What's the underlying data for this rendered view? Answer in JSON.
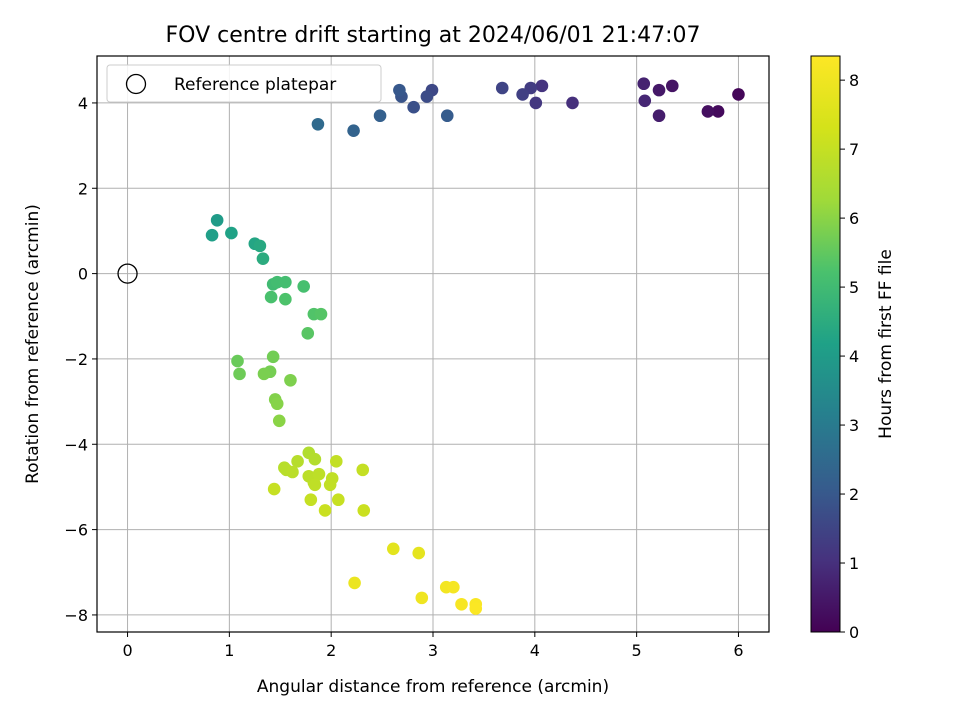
{
  "chart_data": {
    "type": "scatter",
    "title": "FOV centre drift starting at 2024/06/01 21:47:07",
    "xlabel": "Angular distance from reference (arcmin)",
    "ylabel": "Rotation from reference (arcmin)",
    "xlim": [
      -0.3,
      6.3
    ],
    "ylim": [
      -8.4,
      5.1
    ],
    "xticks": [
      0,
      1,
      2,
      3,
      4,
      5,
      6
    ],
    "yticks": [
      -8,
      -6,
      -4,
      -2,
      0,
      2,
      4
    ],
    "grid": true,
    "legend": {
      "location": "upper-left",
      "entries": [
        "Reference platepar"
      ]
    },
    "reference_point": {
      "x": 0,
      "y": 0,
      "label": "Reference platepar"
    },
    "colorbar": {
      "label": "Hours from first FF file",
      "colormap": "viridis",
      "range": [
        0,
        8.35
      ],
      "ticks": [
        0,
        1,
        2,
        3,
        4,
        5,
        6,
        7,
        8
      ]
    },
    "series": [
      {
        "x": [
          6.0,
          5.8,
          5.7,
          5.35,
          5.22,
          5.22,
          5.07,
          5.08,
          4.37,
          4.07,
          4.01,
          3.96,
          3.88,
          3.68,
          2.99,
          2.94,
          2.81,
          2.69,
          2.67,
          3.14,
          2.48,
          2.22,
          1.87
        ],
        "y": [
          4.2,
          3.8,
          3.8,
          4.4,
          4.3,
          3.7,
          4.45,
          4.05,
          4.0,
          4.4,
          4.0,
          4.35,
          4.2,
          4.35,
          4.3,
          4.15,
          3.9,
          4.15,
          4.3,
          3.7,
          3.7,
          3.35,
          3.5
        ],
        "hours": [
          0.1,
          0.2,
          0.3,
          0.4,
          0.5,
          0.6,
          0.7,
          0.8,
          1.0,
          1.1,
          1.2,
          1.3,
          1.4,
          1.5,
          1.6,
          1.7,
          1.8,
          1.9,
          2.0,
          2.1,
          2.2,
          2.3,
          2.5
        ]
      },
      {
        "x": [
          0.88,
          0.83,
          1.02,
          1.25,
          1.3,
          1.33
        ],
        "y": [
          1.25,
          0.9,
          0.95,
          0.7,
          0.65,
          0.35
        ],
        "hours": [
          4.0,
          4.1,
          4.2,
          4.3,
          4.4,
          4.5
        ]
      },
      {
        "x": [
          1.43,
          1.47,
          1.55,
          1.73,
          1.41,
          1.55,
          1.83,
          1.9,
          1.77
        ],
        "y": [
          -0.25,
          -0.2,
          -0.2,
          -0.3,
          -0.55,
          -0.6,
          -0.95,
          -0.95,
          -1.4
        ],
        "hours": [
          5.0,
          5.05,
          5.1,
          5.15,
          5.2,
          5.25,
          5.3,
          5.35,
          5.4
        ]
      },
      {
        "x": [
          1.08,
          1.1,
          1.43,
          1.4,
          1.34,
          1.6,
          1.45,
          1.47,
          1.49
        ],
        "y": [
          -2.05,
          -2.35,
          -1.95,
          -2.3,
          -2.35,
          -2.5,
          -2.95,
          -3.05,
          -3.45
        ],
        "hours": [
          5.6,
          5.65,
          5.7,
          5.75,
          5.8,
          5.85,
          5.9,
          5.95,
          6.0
        ]
      },
      {
        "x": [
          1.78,
          1.84,
          1.67,
          1.54,
          1.56,
          1.62,
          1.78,
          1.83,
          1.88,
          1.84,
          2.01,
          1.99,
          2.05,
          2.31,
          1.8,
          1.44,
          2.07,
          1.94,
          2.32
        ],
        "y": [
          -4.2,
          -4.35,
          -4.4,
          -4.55,
          -4.6,
          -4.65,
          -4.75,
          -4.9,
          -4.7,
          -4.95,
          -4.8,
          -4.95,
          -4.4,
          -4.6,
          -5.3,
          -5.05,
          -5.3,
          -5.55,
          -5.55
        ],
        "hours": [
          6.6,
          6.65,
          6.7,
          6.72,
          6.75,
          6.78,
          6.8,
          6.82,
          6.85,
          6.88,
          6.9,
          6.92,
          6.95,
          6.98,
          7.0,
          7.02,
          7.05,
          7.08,
          7.1
        ]
      },
      {
        "x": [
          2.61,
          2.86,
          2.23,
          2.89,
          3.13,
          3.2,
          3.28,
          3.42,
          3.42
        ],
        "y": [
          -6.45,
          -6.55,
          -7.25,
          -7.6,
          -7.35,
          -7.35,
          -7.75,
          -7.75,
          -7.85
        ],
        "hours": [
          7.7,
          7.75,
          7.9,
          8.0,
          8.1,
          8.15,
          8.2,
          8.25,
          8.3
        ]
      }
    ]
  }
}
